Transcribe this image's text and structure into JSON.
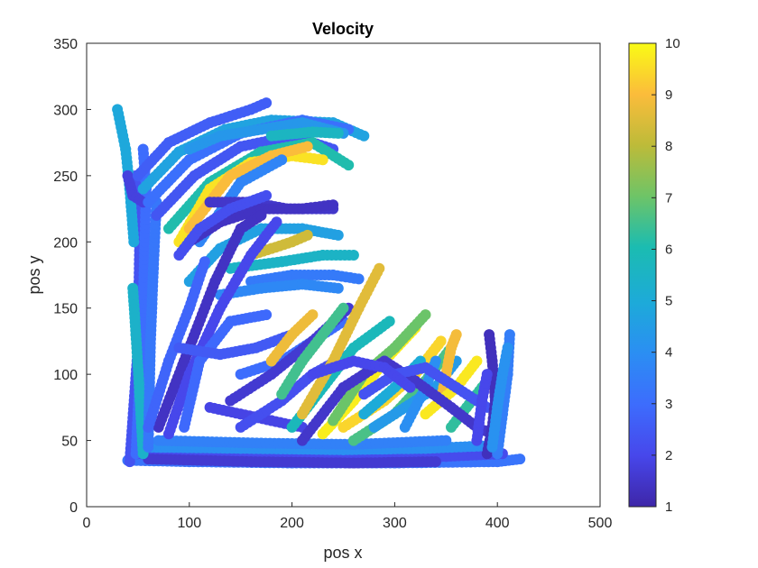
{
  "chart_data": {
    "type": "scatter",
    "title": "Velocity",
    "xlabel": "pos x",
    "ylabel": "pos y",
    "xlim": [
      0,
      500
    ],
    "ylim": [
      0,
      350
    ],
    "xticks": [
      0,
      100,
      200,
      300,
      400,
      500
    ],
    "yticks": [
      0,
      50,
      100,
      150,
      200,
      250,
      300,
      350
    ],
    "xtick_labels": [
      "0",
      "100",
      "200",
      "300",
      "400",
      "500"
    ],
    "ytick_labels": [
      "0",
      "50",
      "100",
      "150",
      "200",
      "250",
      "300",
      "350"
    ],
    "grid": false,
    "colorbar": {
      "label": "",
      "range": [
        1,
        10
      ],
      "ticks": [
        1,
        2,
        3,
        4,
        5,
        6,
        7,
        8,
        9,
        10
      ],
      "tick_labels": [
        "1",
        "2",
        "3",
        "4",
        "5",
        "6",
        "7",
        "8",
        "9",
        "10"
      ],
      "colormap": "parula",
      "placement": "right"
    },
    "trajectories": [
      {
        "pts": [
          [
            40,
            35
          ],
          [
            100,
            34
          ],
          [
            200,
            33
          ],
          [
            300,
            33
          ],
          [
            400,
            34
          ],
          [
            422,
            36
          ]
        ],
        "v": 3.2
      },
      {
        "pts": [
          [
            45,
            40
          ],
          [
            150,
            38
          ],
          [
            250,
            37
          ],
          [
            350,
            38
          ],
          [
            405,
            40
          ]
        ],
        "v": 2.1
      },
      {
        "pts": [
          [
            60,
            36
          ],
          [
            160,
            34
          ],
          [
            260,
            33
          ],
          [
            340,
            34
          ]
        ],
        "v": 1.6
      },
      {
        "pts": [
          [
            55,
            45
          ],
          [
            150,
            44
          ],
          [
            250,
            43
          ],
          [
            330,
            44
          ],
          [
            390,
            46
          ]
        ],
        "v": 4.0
      },
      {
        "pts": [
          [
            70,
            50
          ],
          [
            170,
            48
          ],
          [
            260,
            47
          ],
          [
            350,
            50
          ]
        ],
        "v": 3.6
      },
      {
        "pts": [
          [
            42,
            34
          ],
          [
            50,
            120
          ],
          [
            52,
            220
          ],
          [
            48,
            250
          ]
        ],
        "v": 2.3
      },
      {
        "pts": [
          [
            48,
            40
          ],
          [
            55,
            150
          ],
          [
            58,
            240
          ],
          [
            55,
            270
          ]
        ],
        "v": 3.0
      },
      {
        "pts": [
          [
            45,
            165
          ],
          [
            48,
            130
          ],
          [
            52,
            80
          ],
          [
            55,
            40
          ]
        ],
        "v": 5.4
      },
      {
        "pts": [
          [
            60,
            45
          ],
          [
            62,
            120
          ],
          [
            65,
            180
          ],
          [
            68,
            230
          ]
        ],
        "v": 3.3
      },
      {
        "pts": [
          [
            30,
            300
          ],
          [
            38,
            270
          ],
          [
            42,
            240
          ],
          [
            46,
            200
          ]
        ],
        "v": 4.9
      },
      {
        "pts": [
          [
            40,
            250
          ],
          [
            45,
            235
          ],
          [
            55,
            230
          ]
        ],
        "v": 1.8
      },
      {
        "pts": [
          [
            50,
            250
          ],
          [
            80,
            275
          ],
          [
            120,
            290
          ],
          [
            160,
            300
          ],
          [
            175,
            305
          ]
        ],
        "v": 2.6
      },
      {
        "pts": [
          [
            55,
            240
          ],
          [
            90,
            268
          ],
          [
            135,
            285
          ],
          [
            180,
            292
          ],
          [
            240,
            290
          ],
          [
            270,
            280
          ]
        ],
        "v": 4.7
      },
      {
        "pts": [
          [
            60,
            230
          ],
          [
            100,
            262
          ],
          [
            150,
            282
          ],
          [
            210,
            292
          ],
          [
            255,
            285
          ]
        ],
        "v": 3.1
      },
      {
        "pts": [
          [
            68,
            220
          ],
          [
            105,
            250
          ],
          [
            150,
            272
          ],
          [
            200,
            280
          ],
          [
            240,
            270
          ]
        ],
        "v": 2.4
      },
      {
        "pts": [
          [
            80,
            210
          ],
          [
            120,
            245
          ],
          [
            170,
            268
          ],
          [
            220,
            275
          ],
          [
            255,
            258
          ]
        ],
        "v": 6.1
      },
      {
        "pts": [
          [
            90,
            200
          ],
          [
            120,
            240
          ],
          [
            160,
            260
          ],
          [
            200,
            265
          ],
          [
            230,
            262
          ]
        ],
        "v": 9.6
      },
      {
        "pts": [
          [
            100,
            210
          ],
          [
            140,
            250
          ],
          [
            180,
            265
          ],
          [
            215,
            272
          ]
        ],
        "v": 9.0
      },
      {
        "pts": [
          [
            110,
            200
          ],
          [
            150,
            245
          ],
          [
            190,
            262
          ]
        ],
        "v": 3.7
      },
      {
        "pts": [
          [
            100,
            270
          ],
          [
            130,
            280
          ],
          [
            170,
            285
          ],
          [
            210,
            290
          ],
          [
            250,
            282
          ]
        ],
        "v": 4.3
      },
      {
        "pts": [
          [
            180,
            280
          ],
          [
            220,
            283
          ],
          [
            245,
            282
          ]
        ],
        "v": 5.6
      },
      {
        "pts": [
          [
            120,
            230
          ],
          [
            160,
            230
          ],
          [
            195,
            225
          ],
          [
            240,
            225
          ]
        ],
        "v": 1.5
      },
      {
        "pts": [
          [
            100,
            200
          ],
          [
            130,
            215
          ],
          [
            170,
            225
          ],
          [
            210,
            225
          ],
          [
            240,
            228
          ]
        ],
        "v": 1.4
      },
      {
        "pts": [
          [
            90,
            190
          ],
          [
            110,
            210
          ],
          [
            140,
            225
          ],
          [
            175,
            235
          ]
        ],
        "v": 2.2
      },
      {
        "pts": [
          [
            100,
            170
          ],
          [
            130,
            195
          ],
          [
            170,
            210
          ],
          [
            210,
            210
          ],
          [
            245,
            205
          ]
        ],
        "v": 4.6
      },
      {
        "pts": [
          [
            140,
            180
          ],
          [
            190,
            185
          ],
          [
            230,
            190
          ],
          [
            260,
            190
          ]
        ],
        "v": 5.5
      },
      {
        "pts": [
          [
            160,
            170
          ],
          [
            200,
            175
          ],
          [
            240,
            175
          ],
          [
            265,
            172
          ]
        ],
        "v": 3.4
      },
      {
        "pts": [
          [
            130,
            160
          ],
          [
            170,
            165
          ],
          [
            210,
            168
          ],
          [
            245,
            165
          ]
        ],
        "v": 3.8
      },
      {
        "pts": [
          [
            160,
            190
          ],
          [
            180,
            195
          ],
          [
            200,
            200
          ],
          [
            215,
            205
          ]
        ],
        "v": 8.3
      },
      {
        "pts": [
          [
            70,
            60
          ],
          [
            95,
            110
          ],
          [
            125,
            170
          ],
          [
            150,
            210
          ],
          [
            170,
            220
          ]
        ],
        "v": 1.4
      },
      {
        "pts": [
          [
            80,
            55
          ],
          [
            100,
            100
          ],
          [
            130,
            150
          ],
          [
            160,
            190
          ],
          [
            185,
            215
          ]
        ],
        "v": 2.0
      },
      {
        "pts": [
          [
            60,
            60
          ],
          [
            80,
            110
          ],
          [
            100,
            150
          ],
          [
            115,
            185
          ]
        ],
        "v": 2.8
      },
      {
        "pts": [
          [
            95,
            60
          ],
          [
            110,
            110
          ],
          [
            140,
            140
          ],
          [
            175,
            145
          ]
        ],
        "v": 2.9
      },
      {
        "pts": [
          [
            150,
            100
          ],
          [
            190,
            110
          ],
          [
            220,
            125
          ],
          [
            250,
            140
          ]
        ],
        "v": 3.0
      },
      {
        "pts": [
          [
            90,
            120
          ],
          [
            130,
            115
          ],
          [
            165,
            120
          ],
          [
            200,
            130
          ]
        ],
        "v": 2.5
      },
      {
        "pts": [
          [
            120,
            75
          ],
          [
            150,
            70
          ],
          [
            180,
            65
          ],
          [
            210,
            60
          ]
        ],
        "v": 1.9
      },
      {
        "pts": [
          [
            140,
            80
          ],
          [
            180,
            100
          ],
          [
            220,
            125
          ],
          [
            255,
            150
          ]
        ],
        "v": 1.6
      },
      {
        "pts": [
          [
            150,
            60
          ],
          [
            190,
            80
          ],
          [
            220,
            100
          ],
          [
            255,
            115
          ]
        ],
        "v": 2.2
      },
      {
        "pts": [
          [
            200,
            60
          ],
          [
            230,
            90
          ],
          [
            260,
            120
          ],
          [
            295,
            140
          ]
        ],
        "v": 5.8
      },
      {
        "pts": [
          [
            210,
            70
          ],
          [
            240,
            110
          ],
          [
            265,
            150
          ],
          [
            285,
            180
          ]
        ],
        "v": 8.6
      },
      {
        "pts": [
          [
            230,
            55
          ],
          [
            260,
            80
          ],
          [
            290,
            110
          ],
          [
            320,
            135
          ]
        ],
        "v": 9.8
      },
      {
        "pts": [
          [
            240,
            65
          ],
          [
            270,
            100
          ],
          [
            300,
            120
          ],
          [
            330,
            145
          ]
        ],
        "v": 7.0
      },
      {
        "pts": [
          [
            250,
            60
          ],
          [
            290,
            80
          ],
          [
            320,
            100
          ],
          [
            345,
            125
          ]
        ],
        "v": 9.4
      },
      {
        "pts": [
          [
            260,
            50
          ],
          [
            300,
            70
          ],
          [
            330,
            95
          ],
          [
            355,
            120
          ]
        ],
        "v": 6.6
      },
      {
        "pts": [
          [
            270,
            70
          ],
          [
            300,
            90
          ],
          [
            325,
            110
          ]
        ],
        "v": 5.0
      },
      {
        "pts": [
          [
            280,
            60
          ],
          [
            310,
            75
          ],
          [
            340,
            90
          ],
          [
            360,
            110
          ]
        ],
        "v": 4.4
      },
      {
        "pts": [
          [
            345,
            80
          ],
          [
            350,
            100
          ],
          [
            355,
            120
          ],
          [
            360,
            130
          ]
        ],
        "v": 8.9
      },
      {
        "pts": [
          [
            310,
            60
          ],
          [
            330,
            90
          ],
          [
            340,
            110
          ]
        ],
        "v": 4.0
      },
      {
        "pts": [
          [
            330,
            70
          ],
          [
            360,
            90
          ],
          [
            380,
            110
          ]
        ],
        "v": 9.7
      },
      {
        "pts": [
          [
            355,
            60
          ],
          [
            375,
            80
          ],
          [
            395,
            100
          ]
        ],
        "v": 6.3
      },
      {
        "pts": [
          [
            210,
            50
          ],
          [
            250,
            90
          ],
          [
            290,
            110
          ],
          [
            320,
            95
          ],
          [
            355,
            75
          ],
          [
            380,
            60
          ],
          [
            395,
            55
          ]
        ],
        "v": 1.5
      },
      {
        "pts": [
          [
            270,
            85
          ],
          [
            300,
            100
          ],
          [
            330,
            105
          ],
          [
            360,
            90
          ],
          [
            390,
            75
          ]
        ],
        "v": 2.3
      },
      {
        "pts": [
          [
            220,
            100
          ],
          [
            260,
            110
          ],
          [
            290,
            105
          ],
          [
            315,
            90
          ]
        ],
        "v": 2.0
      },
      {
        "pts": [
          [
            390,
            40
          ],
          [
            395,
            60
          ],
          [
            398,
            80
          ],
          [
            395,
            110
          ],
          [
            392,
            130
          ]
        ],
        "v": 1.3
      },
      {
        "pts": [
          [
            400,
            40
          ],
          [
            405,
            70
          ],
          [
            410,
            100
          ],
          [
            412,
            130
          ]
        ],
        "v": 3.5
      },
      {
        "pts": [
          [
            395,
            45
          ],
          [
            400,
            75
          ],
          [
            405,
            100
          ],
          [
            410,
            120
          ]
        ],
        "v": 4.1
      },
      {
        "pts": [
          [
            380,
            50
          ],
          [
            385,
            80
          ],
          [
            390,
            100
          ]
        ],
        "v": 2.0
      },
      {
        "pts": [
          [
            190,
            85
          ],
          [
            210,
            110
          ],
          [
            230,
            130
          ],
          [
            250,
            150
          ]
        ],
        "v": 6.5
      },
      {
        "pts": [
          [
            180,
            110
          ],
          [
            200,
            130
          ],
          [
            220,
            145
          ]
        ],
        "v": 8.8
      }
    ]
  }
}
